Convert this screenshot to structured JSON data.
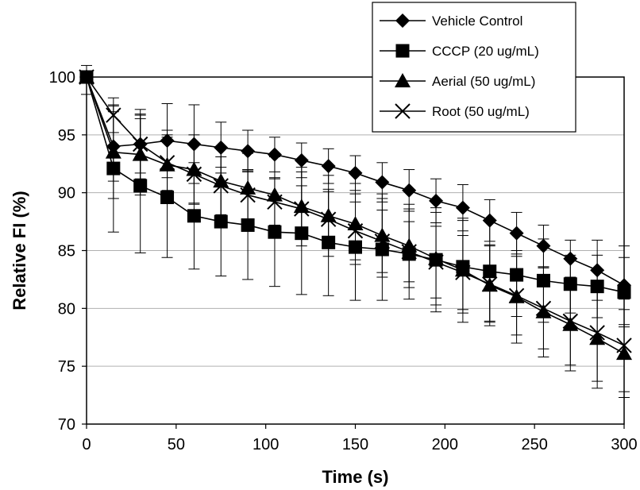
{
  "chart_data": {
    "type": "line",
    "title": "",
    "xlabel": "Time (s)",
    "ylabel": "Relative FI (%)",
    "xlim": [
      0,
      300
    ],
    "ylim": [
      70,
      100
    ],
    "x_ticks": [
      "0",
      "50",
      "100",
      "150",
      "200",
      "250",
      "300"
    ],
    "y_ticks": [
      "70",
      "75",
      "80",
      "85",
      "90",
      "95",
      "100"
    ],
    "grid": "horizontal",
    "legend_position": "top-right",
    "x": [
      0,
      15,
      30,
      45,
      60,
      75,
      90,
      105,
      120,
      135,
      150,
      165,
      180,
      195,
      210,
      225,
      240,
      255,
      270,
      285,
      300
    ],
    "series": [
      {
        "name": "Vehicle Control",
        "marker": "diamond",
        "values": [
          100,
          94.0,
          94.2,
          94.5,
          94.2,
          93.9,
          93.6,
          93.3,
          92.8,
          92.3,
          91.7,
          90.9,
          90.2,
          89.3,
          88.7,
          87.6,
          86.5,
          85.4,
          84.3,
          83.3,
          82.0
        ],
        "error": [
          1.5,
          3.0,
          3.0,
          3.2,
          3.4,
          2.2,
          1.8,
          1.5,
          1.5,
          1.5,
          1.5,
          1.7,
          1.8,
          1.9,
          2.0,
          1.8,
          1.8,
          1.8,
          1.6,
          2.6,
          3.4
        ]
      },
      {
        "name": "CCCP (20 ug/mL)",
        "marker": "square",
        "values": [
          100,
          92.1,
          90.6,
          89.6,
          88.0,
          87.5,
          87.2,
          86.6,
          86.5,
          85.7,
          85.3,
          85.1,
          84.7,
          84.2,
          83.6,
          83.2,
          82.9,
          82.4,
          82.1,
          81.9,
          81.4
        ],
        "error": [
          0.5,
          5.5,
          5.8,
          5.2,
          4.6,
          4.7,
          4.7,
          4.7,
          5.3,
          4.6,
          4.6,
          4.4,
          3.9,
          4.5,
          4.0,
          4.3,
          3.6,
          3.6,
          2.5,
          2.7,
          3.0
        ]
      },
      {
        "name": "Aerial (50 ug/mL)",
        "marker": "triangle",
        "values": [
          100,
          93.5,
          93.3,
          92.4,
          92.0,
          91.0,
          90.4,
          89.8,
          88.8,
          88.0,
          87.3,
          86.3,
          85.4,
          84.3,
          83.3,
          82.0,
          81.0,
          79.7,
          78.6,
          77.4,
          76.1
        ],
        "error": [
          0.5,
          4.0,
          3.5,
          3.0,
          3.0,
          3.0,
          3.0,
          3.3,
          3.4,
          3.5,
          3.5,
          3.6,
          3.6,
          4.0,
          4.5,
          3.5,
          4.0,
          3.9,
          4.0,
          4.3,
          3.8
        ]
      },
      {
        "name": "Root (50 ug/mL)",
        "marker": "x",
        "values": [
          100,
          96.7,
          94.2,
          92.6,
          91.6,
          90.6,
          89.8,
          89.2,
          88.6,
          87.7,
          86.7,
          85.8,
          84.9,
          84.0,
          83.1,
          82.1,
          81.1,
          80.0,
          78.9,
          77.9,
          76.8
        ],
        "error": [
          0.5,
          1.5,
          2.5,
          2.4,
          2.5,
          2.5,
          2.2,
          2.0,
          2.0,
          2.4,
          2.5,
          2.7,
          2.6,
          3.1,
          3.2,
          3.3,
          3.4,
          3.5,
          3.8,
          4.2,
          4.0
        ]
      }
    ]
  }
}
